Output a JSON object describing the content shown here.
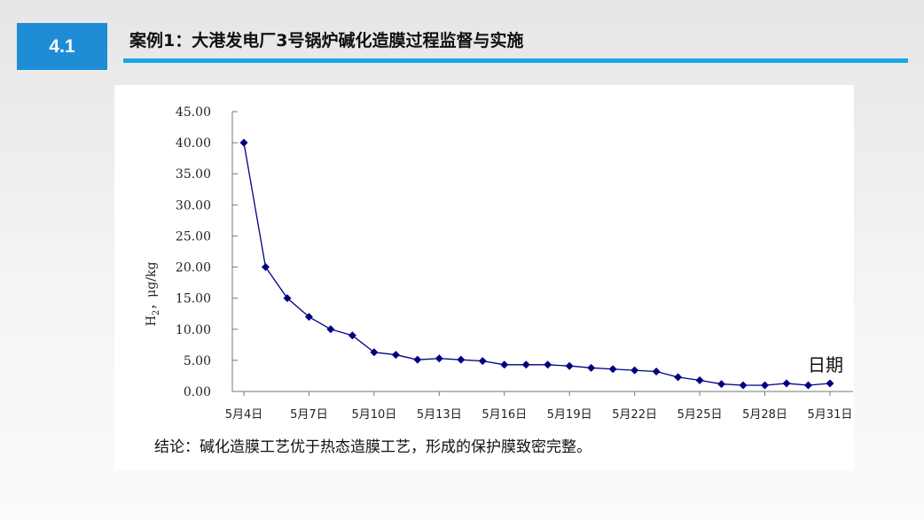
{
  "slide": {
    "section_number": "4.1",
    "title": "案例1：大港发电厂3号锅炉碱化造膜过程监督与实施",
    "conclusion": "结论：碱化造膜工艺优于热态造膜工艺，形成的保护膜致密完整。",
    "colors": {
      "accent": "#1f8dd6",
      "rule": "#18a7e8",
      "series": "#000080"
    }
  },
  "chart_data": {
    "type": "line",
    "title": "",
    "xlabel": "日期",
    "ylabel_main": "H",
    "ylabel_sub": "2",
    "ylabel_rest": "，μg/kg",
    "ylim": [
      0,
      45
    ],
    "ytick_values": [
      0,
      5,
      10,
      15,
      20,
      25,
      30,
      35,
      40,
      45
    ],
    "ytick_labels": [
      "0.00",
      "5.00",
      "10.00",
      "15.00",
      "20.00",
      "25.00",
      "30.00",
      "35.00",
      "40.00",
      "45.00"
    ],
    "xtick_positions": [
      0,
      3,
      6,
      9,
      12,
      15,
      18,
      21,
      24,
      27
    ],
    "xtick_labels": [
      "5月4日",
      "5月7日",
      "5月10日",
      "5月13日",
      "5月16日",
      "5月19日",
      "5月22日",
      "5月25日",
      "5月28日",
      "5月31日"
    ],
    "series": [
      {
        "marker": "diamond",
        "x": [
          0,
          1,
          2,
          3,
          4,
          5,
          6,
          7,
          8,
          9,
          10,
          11,
          12,
          13,
          14,
          15,
          16,
          17,
          18,
          19,
          20,
          21,
          22,
          23,
          24,
          25,
          26,
          27
        ],
        "values": [
          40,
          20,
          15,
          12,
          10,
          9,
          6.3,
          5.9,
          5.1,
          5.3,
          5.1,
          4.9,
          4.3,
          4.3,
          4.3,
          4.1,
          3.8,
          3.6,
          3.4,
          3.2,
          2.3,
          1.8,
          1.2,
          1.0,
          1.0,
          1.3,
          1.0,
          1.3
        ]
      }
    ],
    "grid": false,
    "legend": "none"
  }
}
